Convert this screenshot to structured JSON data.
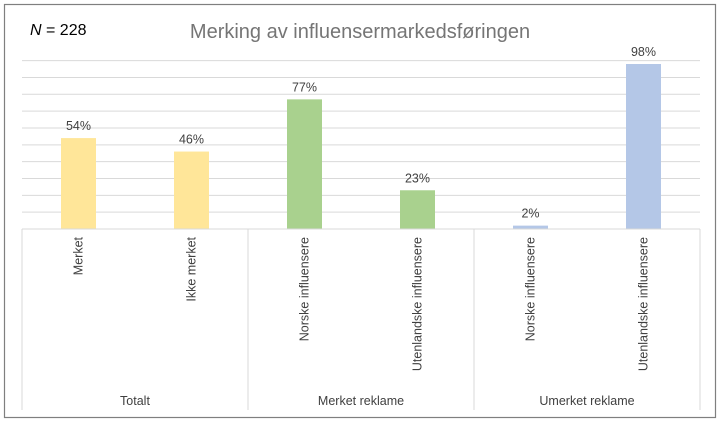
{
  "chart_data": {
    "type": "bar",
    "title": "Merking av influensermarkedsføringen",
    "annotation_n": {
      "label": "N",
      "text": " = 228"
    },
    "ylim": [
      0,
      100
    ],
    "grid": true,
    "groups": [
      {
        "label": "Totalt",
        "categories": [
          {
            "label": "Merket",
            "value": 54,
            "value_label": "54%",
            "color": "#FFE699"
          },
          {
            "label": "Ikke merket",
            "value": 46,
            "value_label": "46%",
            "color": "#FFE699"
          }
        ]
      },
      {
        "label": "Merket reklame",
        "categories": [
          {
            "label": "Norske influensere",
            "value": 77,
            "value_label": "77%",
            "color": "#A9D18E"
          },
          {
            "label": "Utenlandske influensere",
            "value": 23,
            "value_label": "23%",
            "color": "#A9D18E"
          }
        ]
      },
      {
        "label": "Umerket reklame",
        "categories": [
          {
            "label": "Norske influensere",
            "value": 2,
            "value_label": "2%",
            "color": "#B4C7E7"
          },
          {
            "label": "Utenlandske influensere",
            "value": 98,
            "value_label": "98%",
            "color": "#B4C7E7"
          }
        ]
      }
    ]
  }
}
